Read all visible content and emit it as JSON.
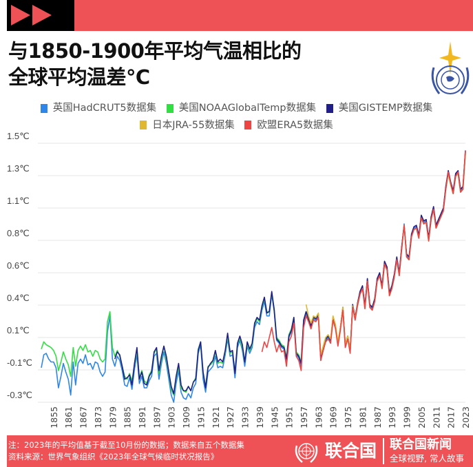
{
  "header": {
    "title_line1": "与1850-1900年平均气温相比的",
    "title_line2": "全球平均温差℃"
  },
  "colors": {
    "accent": "#EE5257"
  },
  "footer": {
    "note": "注：2023年的平均值基于截至10月份的数据；数据来自五个数据集",
    "source": "资料来源：世界气象组织《2023年全球气候临时状况报告》",
    "un_name": "联合国",
    "news_name": "联合国新闻",
    "slogan": "全球视野, 常人故事"
  },
  "chart_data": {
    "type": "line",
    "title": "与1850-1900年平均气温相比的全球平均温差℃",
    "xlabel": "",
    "ylabel": "℃",
    "xlim": [
      1850,
      2023
    ],
    "ylim": [
      -0.3,
      1.5
    ],
    "grid": true,
    "legend_position": "top",
    "yticks": [
      {
        "value": 1.5,
        "label": "1.5℃"
      },
      {
        "value": 1.275,
        "label": "1.3℃"
      },
      {
        "value": 1.05,
        "label": "1.1℃"
      },
      {
        "value": 0.825,
        "label": "0.8℃"
      },
      {
        "value": 0.6,
        "label": "0.6℃"
      },
      {
        "value": 0.375,
        "label": "0.4℃"
      },
      {
        "value": 0.15,
        "label": "0.1℃"
      },
      {
        "value": -0.075,
        "label": "-0.1℃"
      },
      {
        "value": -0.3,
        "label": "-0.3℃"
      }
    ],
    "xticks": [
      "1855",
      "1861",
      "1867",
      "1873",
      "1879",
      "1885",
      "1891",
      "1897",
      "1903",
      "1909",
      "1915",
      "1921",
      "1927",
      "1933",
      "1939",
      "1945",
      "1951",
      "1957",
      "1963",
      "1969",
      "1975",
      "1981",
      "1987",
      "1993",
      "1999",
      "2005",
      "2011",
      "2017",
      "2023"
    ],
    "series": [
      {
        "name": "英国HadCRUT5数据集",
        "color": "#2E86E8",
        "start": 1850,
        "values": [
          -0.06,
          0.03,
          0.04,
          0.0,
          -0.02,
          -0.02,
          -0.06,
          -0.2,
          -0.12,
          -0.03,
          -0.09,
          -0.14,
          -0.25,
          -0.02,
          -0.18,
          -0.03,
          0.0,
          -0.03,
          0.03,
          -0.04,
          -0.03,
          -0.07,
          -0.02,
          -0.03,
          -0.09,
          -0.12,
          -0.09,
          0.19,
          0.3,
          0.0,
          -0.05,
          0.02,
          -0.01,
          -0.08,
          -0.18,
          -0.19,
          -0.13,
          -0.21,
          -0.07,
          0.03,
          -0.17,
          -0.12,
          -0.2,
          -0.2,
          -0.15,
          -0.12,
          0.02,
          0.04,
          -0.14,
          -0.03,
          0.05,
          -0.03,
          -0.14,
          -0.25,
          -0.3,
          -0.17,
          -0.08,
          -0.23,
          -0.27,
          -0.28,
          -0.24,
          -0.27,
          -0.2,
          -0.17,
          0.04,
          0.1,
          -0.14,
          -0.23,
          -0.09,
          -0.07,
          -0.05,
          0.02,
          -0.06,
          -0.05,
          -0.06,
          0.03,
          0.14,
          0.02,
          0.03,
          -0.13,
          0.08,
          0.13,
          0.06,
          -0.05,
          0.09,
          0.04,
          0.08,
          0.22,
          0.26,
          0.24,
          0.34,
          0.4,
          0.3,
          0.3,
          0.45,
          0.33,
          0.13,
          0.11,
          0.08,
          0.07,
          -0.02,
          0.15,
          0.19,
          0.28,
          0.03,
          0.01,
          -0.05,
          0.26,
          0.32,
          0.27,
          0.22,
          0.28,
          0.27,
          0.3,
          0.0,
          0.07,
          0.13,
          0.15,
          0.12,
          0.28,
          0.22,
          0.1,
          0.21,
          0.35,
          0.09,
          0.15,
          0.05,
          0.37,
          0.28,
          0.38,
          0.46,
          0.5,
          0.36,
          0.55,
          0.37,
          0.35,
          0.41,
          0.55,
          0.59,
          0.5,
          0.67,
          0.63,
          0.45,
          0.5,
          0.58,
          0.7,
          0.59,
          0.77,
          0.94,
          0.72,
          0.7,
          0.86,
          0.91,
          0.92,
          0.85,
          0.99,
          0.95,
          0.96,
          0.83,
          0.98,
          1.05,
          0.92,
          0.96,
          1.0,
          1.04,
          1.19,
          1.3,
          1.22,
          1.16,
          1.28,
          1.3,
          1.17,
          1.19,
          1.44
        ]
      },
      {
        "name": "美国NOAAGlobalTemp数据集",
        "color": "#33DD44",
        "start": 1850,
        "values": [
          0.07,
          0.12,
          0.1,
          0.09,
          0.08,
          0.06,
          0.02,
          -0.08,
          -0.02,
          0.05,
          0.0,
          -0.04,
          -0.12,
          0.08,
          -0.05,
          0.06,
          0.09,
          0.06,
          0.1,
          0.05,
          0.06,
          0.02,
          0.06,
          0.05,
          0.0,
          -0.02,
          0.0,
          0.26,
          0.33,
          0.08,
          0.02,
          0.06,
          0.02,
          -0.05,
          -0.12,
          -0.14,
          -0.1,
          -0.15,
          -0.04,
          0.06,
          -0.13,
          -0.08,
          -0.15,
          -0.17,
          -0.11,
          -0.08,
          0.04,
          0.07,
          -0.1,
          0.0,
          0.09,
          0.0,
          -0.1,
          -0.21,
          -0.25,
          -0.13,
          -0.05,
          -0.2,
          -0.22,
          -0.23,
          -0.19,
          -0.22,
          -0.16,
          -0.13,
          0.07,
          0.12,
          -0.1,
          -0.19,
          -0.05,
          -0.04,
          -0.02,
          0.05,
          -0.03,
          -0.02,
          -0.03,
          0.05,
          0.16,
          0.04,
          0.05,
          -0.09,
          0.1,
          0.15,
          0.08,
          -0.02,
          0.11,
          0.06,
          0.1,
          0.24,
          0.28,
          0.26,
          0.36,
          0.42,
          0.33,
          0.33,
          0.46,
          0.35,
          0.15,
          0.13,
          0.1,
          0.09,
          0.01,
          0.17,
          0.21,
          0.29,
          0.05,
          0.03,
          -0.02,
          0.27,
          0.33,
          0.28,
          0.23,
          0.29,
          0.28,
          0.31,
          0.02,
          0.09,
          0.15,
          0.16,
          0.13,
          0.29,
          0.23,
          0.12,
          0.22,
          0.35,
          0.1,
          0.16,
          0.07,
          0.37,
          0.29,
          0.38,
          0.46,
          0.5,
          0.37,
          0.55,
          0.38,
          0.36,
          0.42,
          0.55,
          0.59,
          0.51,
          0.67,
          0.63,
          0.46,
          0.51,
          0.58,
          0.69,
          0.6,
          0.77,
          0.93,
          0.73,
          0.71,
          0.86,
          0.9,
          0.91,
          0.85,
          0.98,
          0.94,
          0.95,
          0.83,
          0.97,
          1.04,
          0.91,
          0.95,
          0.99,
          1.04,
          1.18,
          1.29,
          1.21,
          1.15,
          1.27,
          1.29,
          1.16,
          1.18,
          1.43
        ]
      },
      {
        "name": "美国GISTEMP数据集",
        "color": "#221E88",
        "start": 1880,
        "values": [
          0.0,
          0.05,
          0.03,
          -0.05,
          -0.14,
          -0.13,
          -0.11,
          -0.18,
          -0.03,
          0.08,
          -0.14,
          -0.09,
          -0.17,
          -0.18,
          -0.12,
          -0.09,
          0.05,
          0.08,
          -0.08,
          0.02,
          0.09,
          0.02,
          -0.09,
          -0.19,
          -0.24,
          -0.12,
          -0.03,
          -0.18,
          -0.22,
          -0.22,
          -0.19,
          -0.22,
          -0.16,
          -0.14,
          0.06,
          0.12,
          -0.09,
          -0.2,
          -0.06,
          -0.03,
          -0.01,
          0.06,
          -0.02,
          0.0,
          -0.02,
          0.06,
          0.18,
          0.05,
          0.06,
          -0.1,
          0.11,
          0.16,
          0.1,
          -0.02,
          0.12,
          0.07,
          0.11,
          0.25,
          0.29,
          0.27,
          0.37,
          0.43,
          0.32,
          0.33,
          0.47,
          0.34,
          0.14,
          0.12,
          0.09,
          0.08,
          0.0,
          0.16,
          0.2,
          0.29,
          0.04,
          0.02,
          -0.03,
          0.27,
          0.33,
          0.28,
          0.23,
          0.29,
          0.28,
          0.31,
          0.01,
          0.08,
          0.14,
          0.16,
          0.13,
          0.29,
          0.23,
          0.11,
          0.22,
          0.36,
          0.1,
          0.16,
          0.06,
          0.38,
          0.29,
          0.39,
          0.47,
          0.51,
          0.37,
          0.56,
          0.38,
          0.36,
          0.42,
          0.56,
          0.6,
          0.51,
          0.68,
          0.64,
          0.46,
          0.51,
          0.59,
          0.71,
          0.6,
          0.78,
          0.93,
          0.73,
          0.71,
          0.87,
          0.92,
          0.93,
          0.86,
          1.0,
          0.96,
          0.97,
          0.84,
          0.99,
          1.06,
          0.93,
          0.97,
          1.01,
          1.05,
          1.2,
          1.31,
          1.23,
          1.17,
          1.29,
          1.31,
          1.18,
          1.2,
          1.45
        ]
      },
      {
        "name": "日本JRA-55数据集",
        "color": "#E0B830",
        "start": 1958,
        "values": [
          0.38,
          0.3,
          0.25,
          0.3,
          0.29,
          0.32,
          0.03,
          0.09,
          0.15,
          0.17,
          0.14,
          0.3,
          0.24,
          0.12,
          0.22,
          0.36,
          0.1,
          0.16,
          0.06,
          0.37,
          0.28,
          0.38,
          0.45,
          0.49,
          0.35,
          0.54,
          0.36,
          0.34,
          0.4,
          0.54,
          0.58,
          0.49,
          0.66,
          0.62,
          0.44,
          0.49,
          0.57,
          0.69,
          0.58,
          0.76,
          0.93,
          0.71,
          0.69,
          0.85,
          0.9,
          0.91,
          0.84,
          0.98,
          0.94,
          0.95,
          0.82,
          0.97,
          1.04,
          0.91,
          0.95,
          0.99,
          1.03,
          1.18,
          1.29,
          1.21,
          1.15,
          1.27,
          1.29,
          1.16,
          1.18,
          1.43
        ]
      },
      {
        "name": "欧盟ERA5数据集",
        "color": "#EE4444",
        "start": 1940,
        "values": [
          0.05,
          0.12,
          0.08,
          0.15,
          0.22,
          0.12,
          0.05,
          0.1,
          0.05,
          0.06,
          -0.05,
          0.12,
          0.16,
          0.25,
          0.02,
          -0.01,
          -0.08,
          0.22,
          0.3,
          0.26,
          0.21,
          0.27,
          0.26,
          0.29,
          -0.01,
          0.06,
          0.12,
          0.14,
          0.11,
          0.27,
          0.21,
          0.09,
          0.2,
          0.34,
          0.08,
          0.14,
          0.04,
          0.36,
          0.27,
          0.37,
          0.45,
          0.49,
          0.35,
          0.54,
          0.36,
          0.34,
          0.4,
          0.54,
          0.58,
          0.49,
          0.66,
          0.62,
          0.44,
          0.49,
          0.57,
          0.69,
          0.58,
          0.76,
          0.93,
          0.71,
          0.69,
          0.85,
          0.9,
          0.91,
          0.84,
          0.98,
          0.94,
          0.95,
          0.82,
          0.97,
          1.04,
          0.91,
          0.95,
          0.99,
          1.03,
          1.18,
          1.3,
          1.22,
          1.15,
          1.27,
          1.3,
          1.16,
          1.18,
          1.45
        ]
      }
    ]
  }
}
